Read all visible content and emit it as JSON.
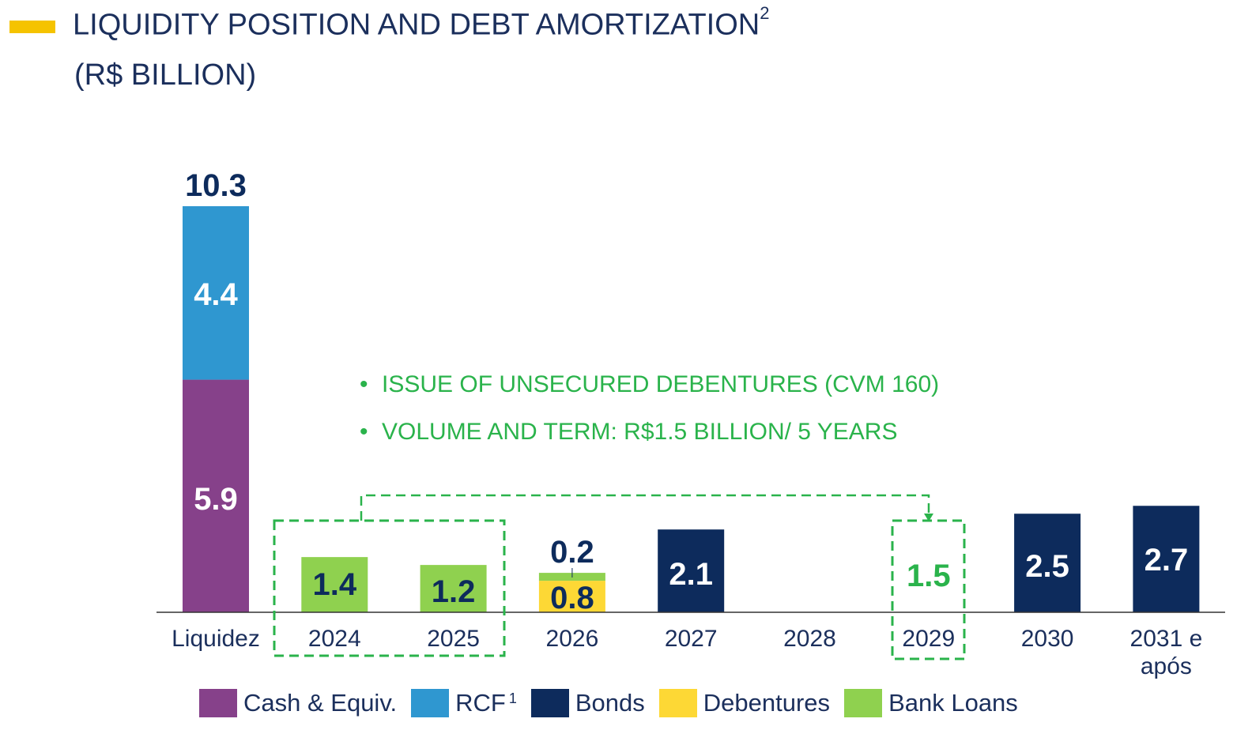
{
  "header": {
    "title": "LIQUIDITY POSITION AND DEBT AMORTIZATION",
    "title_sup": "2",
    "subtitle": "(R$ BILLION)",
    "accent_color": "#f5c300"
  },
  "notes": [
    "ISSUE OF UNSECURED DEBENTURES (CVM 160)",
    "VOLUME AND TERM: R$1.5 BILLION/ 5 YEARS"
  ],
  "colors": {
    "cash": "#86418a",
    "rcf": "#2f97d0",
    "bonds": "#0d2b5c",
    "debentures": "#fdd835",
    "bank_loans": "#8fd14f",
    "highlight": "#2ab34b",
    "text": "#1b2f5c"
  },
  "chart_data": {
    "type": "bar",
    "stacked": true,
    "categories": [
      "Liquidez",
      "2024",
      "2025",
      "2026",
      "2027",
      "2028",
      "2029",
      "2030",
      "2031 e após"
    ],
    "series": [
      {
        "name": "Cash & Equiv.",
        "color": "#86418a",
        "values": [
          5.9,
          0,
          0,
          0,
          0,
          0,
          0,
          0,
          0
        ]
      },
      {
        "name": "RCF",
        "name_sup": "1",
        "color": "#2f97d0",
        "values": [
          4.4,
          0,
          0,
          0,
          0,
          0,
          0,
          0,
          0
        ]
      },
      {
        "name": "Bonds",
        "color": "#0d2b5c",
        "values": [
          0,
          0,
          0,
          0,
          2.1,
          0,
          0,
          2.5,
          2.7
        ]
      },
      {
        "name": "Debentures",
        "color": "#fdd835",
        "values": [
          0,
          0,
          0,
          0.8,
          0,
          0,
          0,
          0,
          0
        ]
      },
      {
        "name": "Bank Loans",
        "color": "#8fd14f",
        "values": [
          0,
          1.4,
          1.2,
          0.2,
          0,
          0,
          0,
          0,
          0
        ]
      }
    ],
    "new_issue": {
      "category": "2029",
      "value": 1.5,
      "label": "1.5"
    },
    "totals": {
      "Liquidez": 10.3
    },
    "data_labels": {
      "Liquidez": {
        "total": "10.3",
        "segments": [
          "5.9",
          "4.4"
        ]
      },
      "2024": [
        "1.4"
      ],
      "2025": [
        "1.2"
      ],
      "2026": {
        "top": "0.2",
        "inner": "0.8"
      },
      "2027": [
        "2.1"
      ],
      "2030": [
        "2.5"
      ],
      "2031 e após": [
        "2.7"
      ]
    },
    "legend_position": "bottom",
    "grid": false
  }
}
